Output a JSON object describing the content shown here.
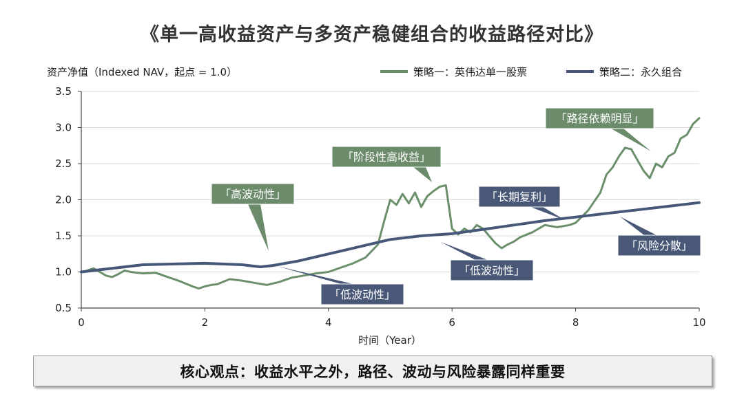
{
  "title": "《单一高收益资产与多资产稳健组合的收益路径对比》",
  "conclusion": "核心观点：收益水平之外，路径、波动与风险暴露同样重要",
  "colors": {
    "series1": "#6b8f6b",
    "series2": "#46577a",
    "callout_green": "#6b8b6b",
    "callout_blue": "#4a5877",
    "grid": "#d9d9d9",
    "axis": "#444444"
  },
  "chart_data": {
    "type": "line",
    "ylabel": "资产净值（Indexed NAV，起点 = 1.0）",
    "xlabel": "时间（Year）",
    "xlim": [
      0,
      10
    ],
    "ylim": [
      0.5,
      3.5
    ],
    "xticks": [
      "0",
      "2",
      "4",
      "6",
      "8",
      "10"
    ],
    "yticks": [
      "0.5",
      "1.0",
      "1.5",
      "2.0",
      "2.5",
      "3.0",
      "3.5"
    ],
    "grid": "horizontal",
    "legend_position": "top-right",
    "series": [
      {
        "name": "策略一：英伟达单一股票",
        "x": [
          0,
          0.1,
          0.2,
          0.3,
          0.4,
          0.5,
          0.6,
          0.7,
          0.8,
          0.9,
          1.0,
          1.2,
          1.4,
          1.6,
          1.8,
          1.9,
          2.0,
          2.1,
          2.2,
          2.4,
          2.6,
          2.8,
          3.0,
          3.2,
          3.4,
          3.6,
          3.8,
          4.0,
          4.2,
          4.4,
          4.6,
          4.8,
          4.9,
          5.0,
          5.1,
          5.2,
          5.3,
          5.4,
          5.5,
          5.6,
          5.7,
          5.8,
          5.9,
          6.0,
          6.1,
          6.2,
          6.3,
          6.4,
          6.5,
          6.6,
          6.7,
          6.8,
          6.9,
          7.0,
          7.1,
          7.3,
          7.5,
          7.7,
          7.9,
          8.0,
          8.2,
          8.4,
          8.5,
          8.6,
          8.7,
          8.8,
          8.9,
          9.0,
          9.1,
          9.2,
          9.3,
          9.4,
          9.5,
          9.6,
          9.7,
          9.8,
          9.9,
          10.0
        ],
        "values": [
          1.0,
          1.02,
          1.05,
          1.0,
          0.95,
          0.93,
          0.97,
          1.02,
          1.0,
          0.99,
          0.98,
          0.99,
          0.93,
          0.87,
          0.8,
          0.77,
          0.8,
          0.82,
          0.83,
          0.9,
          0.88,
          0.85,
          0.82,
          0.86,
          0.92,
          0.95,
          0.98,
          1.0,
          1.06,
          1.12,
          1.2,
          1.38,
          1.7,
          2.0,
          1.93,
          2.08,
          1.95,
          2.1,
          1.9,
          2.05,
          2.12,
          2.18,
          2.2,
          1.6,
          1.52,
          1.6,
          1.55,
          1.65,
          1.6,
          1.5,
          1.4,
          1.33,
          1.38,
          1.42,
          1.48,
          1.55,
          1.65,
          1.62,
          1.65,
          1.68,
          1.85,
          2.1,
          2.35,
          2.45,
          2.6,
          2.72,
          2.7,
          2.55,
          2.4,
          2.3,
          2.5,
          2.45,
          2.6,
          2.65,
          2.85,
          2.9,
          3.05,
          3.13
        ]
      },
      {
        "name": "策略二：永久组合",
        "x": [
          0,
          1,
          2,
          2.6,
          2.9,
          3.0,
          3.1,
          3.5,
          4.0,
          4.5,
          5.0,
          5.5,
          6.0,
          6.5,
          7.0,
          7.5,
          8.0,
          8.5,
          9.0,
          9.5,
          10.0
        ],
        "values": [
          1.0,
          1.1,
          1.12,
          1.1,
          1.07,
          1.08,
          1.09,
          1.15,
          1.25,
          1.35,
          1.45,
          1.5,
          1.53,
          1.59,
          1.65,
          1.71,
          1.76,
          1.81,
          1.86,
          1.91,
          1.96
        ]
      }
    ],
    "annotations": [
      {
        "text": "「高波动性」",
        "series": 0
      },
      {
        "text": "「阶段性高收益」",
        "series": 0
      },
      {
        "text": "「路径依赖明显」",
        "series": 0
      },
      {
        "text": "「长期复利」",
        "series": 1
      },
      {
        "text": "「风险分散」",
        "series": 1
      },
      {
        "text": "「低波动性」",
        "series": 1
      },
      {
        "text": "「低波动性」",
        "series": 1
      }
    ]
  }
}
